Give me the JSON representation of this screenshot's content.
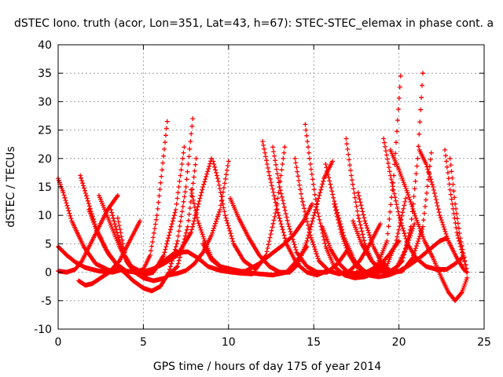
{
  "chart_data": {
    "type": "scatter",
    "title": "dSTEC Iono. truth (acor, Lon=351, Lat=43, h=67): STEC-STEC_elemax in phase cont. a",
    "xlabel": "GPS time / hours of day 175 of year 2014",
    "ylabel": "dSTEC  / TECUs",
    "xlim": [
      0,
      25
    ],
    "ylim": [
      -10,
      40
    ],
    "xticks": [
      "0",
      "5",
      "10",
      "15",
      "20",
      "25"
    ],
    "yticks": [
      "-10",
      "-5",
      "0",
      "5",
      "10",
      "15",
      "20",
      "25",
      "30",
      "35",
      "40"
    ],
    "grid": true,
    "marker": "+",
    "color": "#ff0000",
    "series": [
      {
        "x": [
          0.0,
          0.3,
          0.8,
          1.5,
          2.2,
          3.0,
          3.6,
          4.0
        ],
        "y": [
          16.5,
          14.0,
          9.0,
          4.5,
          1.5,
          0.3,
          0.5,
          0.0
        ]
      },
      {
        "x": [
          0.0,
          0.5,
          1.0,
          1.6,
          2.4,
          3.2,
          3.8
        ],
        "y": [
          4.5,
          3.0,
          1.8,
          0.8,
          0.2,
          0.0,
          0.5
        ]
      },
      {
        "x": [
          0.0,
          0.5,
          1.0,
          1.4,
          1.9,
          2.4,
          2.9,
          3.5
        ],
        "y": [
          0.2,
          0.0,
          0.5,
          2.0,
          5.0,
          8.0,
          11.0,
          13.5
        ]
      },
      {
        "x": [
          1.3,
          1.7,
          2.2,
          2.8,
          3.4,
          4.0,
          4.5,
          5.0,
          5.4,
          5.8,
          6.1,
          6.4
        ],
        "y": [
          17.0,
          13.0,
          8.0,
          4.0,
          1.5,
          0.2,
          0.0,
          0.5,
          3.0,
          10.0,
          18.0,
          26.5
        ]
      },
      {
        "x": [
          1.2,
          1.6,
          2.0,
          2.5,
          3.0,
          3.6,
          4.2,
          4.8
        ],
        "y": [
          -1.5,
          -2.3,
          -2.0,
          -1.0,
          0.0,
          2.0,
          5.5,
          9.0
        ]
      },
      {
        "x": [
          1.8,
          2.3,
          3.0,
          3.7,
          4.4,
          5.0,
          5.5,
          6.0,
          6.5,
          7.0,
          7.5,
          7.9
        ],
        "y": [
          11.0,
          7.0,
          3.0,
          0.5,
          -1.5,
          -2.8,
          -3.3,
          -2.5,
          0.0,
          5.5,
          15.0,
          27.0
        ]
      },
      {
        "x": [
          2.4,
          3.0,
          3.6,
          4.1,
          4.5,
          5.0,
          5.6,
          6.2,
          6.9,
          7.4
        ],
        "y": [
          13.5,
          9.0,
          4.5,
          1.5,
          0.0,
          -0.5,
          0.0,
          3.0,
          11.0,
          22.0
        ]
      },
      {
        "x": [
          3.1,
          3.5,
          3.9,
          4.3,
          4.9,
          5.5,
          6.2,
          7.0,
          7.8,
          8.5,
          9.0
        ],
        "y": [
          11.0,
          6.5,
          3.0,
          1.0,
          0.0,
          0.5,
          1.5,
          3.0,
          7.0,
          15.0,
          20.0
        ]
      },
      {
        "x": [
          3.5,
          3.8,
          4.0,
          4.5,
          5.0,
          5.6,
          6.3,
          7.0,
          7.6,
          8.1
        ],
        "y": [
          9.5,
          5.0,
          2.0,
          0.0,
          -1.0,
          -1.5,
          -1.0,
          1.0,
          8.0,
          20.0
        ]
      },
      {
        "x": [
          5.4,
          5.8,
          6.3,
          6.9,
          7.6,
          8.2,
          8.8,
          9.5,
          10.2,
          11.0,
          11.8,
          12.5,
          13.2,
          13.8,
          14.4,
          14.9
        ],
        "y": [
          0.0,
          1.0,
          2.2,
          3.5,
          3.6,
          2.5,
          1.0,
          0.3,
          0.0,
          0.2,
          1.5,
          3.2,
          4.8,
          6.5,
          9.0,
          12.0
        ]
      },
      {
        "x": [
          6.5,
          7.0,
          7.5,
          8.0,
          8.5,
          9.0,
          9.5,
          10.0
        ],
        "y": [
          -0.5,
          -0.2,
          0.3,
          1.5,
          3.5,
          6.5,
          11.0,
          19.5
        ]
      },
      {
        "x": [
          7.8,
          8.2,
          8.6,
          9.0,
          9.6,
          10.2,
          10.8,
          11.4
        ],
        "y": [
          14.5,
          9.0,
          5.5,
          2.5,
          0.8,
          0.0,
          -0.2,
          -0.3
        ]
      },
      {
        "x": [
          8.5,
          9.0,
          9.5,
          10.2,
          11.0,
          11.8,
          12.6,
          13.4,
          14.0,
          14.6
        ],
        "y": [
          5.0,
          2.2,
          1.0,
          0.5,
          0.0,
          -0.3,
          -0.5,
          0.0,
          2.0,
          4.5
        ]
      },
      {
        "x": [
          9.1,
          9.4,
          9.8,
          10.3,
          10.9,
          11.6,
          12.2,
          12.8,
          13.3
        ],
        "y": [
          19.5,
          16.0,
          10.0,
          5.0,
          2.0,
          0.5,
          3.0,
          11.0,
          22.0
        ]
      },
      {
        "x": [
          10.1,
          10.6,
          11.2,
          11.8,
          12.4,
          13.0,
          13.6,
          14.1,
          14.6,
          15.1,
          15.6,
          16.1
        ],
        "y": [
          13.0,
          9.5,
          6.0,
          3.0,
          1.0,
          0.0,
          0.0,
          1.5,
          5.5,
          11.0,
          16.5,
          19.5
        ]
      },
      {
        "x": [
          12.0,
          12.4,
          12.9,
          13.4,
          14.0,
          14.6,
          15.2,
          15.8
        ],
        "y": [
          23.0,
          17.0,
          10.5,
          5.0,
          1.5,
          0.0,
          -0.5,
          0.3
        ]
      },
      {
        "x": [
          12.6,
          13.0,
          13.5,
          14.0,
          14.6,
          15.2,
          15.8,
          16.4,
          17.0
        ],
        "y": [
          22.0,
          15.0,
          8.5,
          3.5,
          1.0,
          0.0,
          0.0,
          1.5,
          4.0
        ]
      },
      {
        "x": [
          13.9,
          14.3,
          14.8,
          15.3,
          15.9,
          16.5,
          17.1,
          17.7,
          18.3,
          18.9
        ],
        "y": [
          20.0,
          13.0,
          6.5,
          2.0,
          0.2,
          -0.3,
          0.2,
          2.0,
          5.0,
          8.5
        ]
      },
      {
        "x": [
          14.5,
          14.8,
          15.2,
          15.7,
          16.2,
          16.8,
          17.4,
          18.0,
          18.6,
          19.2
        ],
        "y": [
          26.0,
          19.0,
          11.0,
          4.5,
          1.0,
          -0.5,
          -1.0,
          -0.8,
          0.0,
          1.5
        ]
      },
      {
        "x": [
          15.5,
          16.0,
          16.5,
          17.0,
          17.6,
          18.2,
          18.8,
          19.4,
          20.0
        ],
        "y": [
          8.0,
          4.0,
          1.5,
          0.0,
          -0.3,
          0.0,
          1.0,
          3.0,
          5.5
        ]
      },
      {
        "x": [
          15.7,
          16.2,
          16.8,
          17.4,
          18.0,
          18.6,
          19.2,
          19.8,
          20.4
        ],
        "y": [
          19.0,
          12.5,
          6.0,
          2.0,
          0.0,
          -0.2,
          0.5,
          5.0,
          13.0
        ]
      },
      {
        "x": [
          16.2,
          16.6,
          17.0,
          17.5,
          18.1,
          18.7,
          19.3,
          19.7,
          20.1
        ],
        "y": [
          12.0,
          7.0,
          3.5,
          1.0,
          0.0,
          1.0,
          5.5,
          17.0,
          34.5
        ]
      },
      {
        "x": [
          16.9,
          17.2,
          17.6,
          18.0,
          18.4,
          18.9,
          19.4,
          19.9,
          20.4,
          20.9
        ],
        "y": [
          23.5,
          17.0,
          10.0,
          5.0,
          2.0,
          0.2,
          0.0,
          1.0,
          4.0,
          8.5
        ]
      },
      {
        "x": [
          17.6,
          18.0,
          18.5,
          19.0,
          19.6,
          20.2,
          20.8,
          21.4,
          21.9
        ],
        "y": [
          14.0,
          9.0,
          4.5,
          1.5,
          0.0,
          0.2,
          2.5,
          8.0,
          21.0
        ]
      },
      {
        "x": [
          17.3,
          17.8,
          18.4,
          19.0,
          19.6,
          20.2,
          20.7,
          21.1,
          21.4
        ],
        "y": [
          9.0,
          5.0,
          2.0,
          0.2,
          0.0,
          2.0,
          8.0,
          20.0,
          35.0
        ]
      },
      {
        "x": [
          19.1,
          19.5,
          20.0,
          20.5,
          21.0,
          21.6,
          22.2,
          22.8,
          23.3,
          23.7
        ],
        "y": [
          23.5,
          17.0,
          10.0,
          5.0,
          2.5,
          1.0,
          0.5,
          0.5,
          1.5,
          2.5
        ]
      },
      {
        "x": [
          19.5,
          20.0,
          20.5,
          21.0,
          21.5,
          22.0,
          22.5,
          22.9,
          23.3,
          23.7,
          24.0
        ],
        "y": [
          21.5,
          18.0,
          14.0,
          9.5,
          5.5,
          2.5,
          -1.0,
          -3.5,
          -5.0,
          -3.5,
          -1.0
        ]
      },
      {
        "x": [
          21.2,
          21.6,
          22.0,
          22.4,
          22.9,
          23.4,
          23.8,
          24.0
        ],
        "y": [
          21.5,
          19.0,
          15.0,
          10.0,
          5.5,
          2.5,
          0.5,
          0.0
        ]
      },
      {
        "x": [
          22.7,
          23.0,
          23.4,
          23.8,
          24.0
        ],
        "y": [
          21.5,
          14.5,
          7.0,
          2.5,
          0.0
        ]
      },
      {
        "x": [
          23.0,
          23.3,
          23.6,
          24.0
        ],
        "y": [
          20.0,
          12.0,
          6.0,
          0.0
        ]
      },
      {
        "x": [
          17.5,
          18.2,
          18.8,
          19.4,
          20.0,
          20.6,
          21.2,
          21.8,
          22.4,
          22.8
        ],
        "y": [
          0.0,
          -0.5,
          -0.8,
          -0.5,
          0.2,
          1.2,
          2.5,
          4.0,
          5.5,
          6.0
        ]
      }
    ]
  }
}
